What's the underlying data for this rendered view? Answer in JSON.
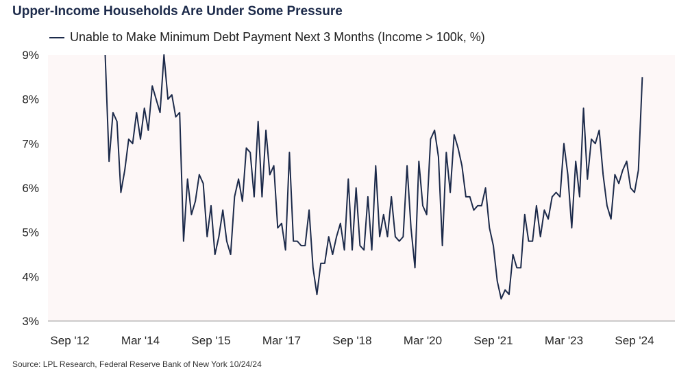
{
  "title": "Upper-Income Households Are Under Some Pressure",
  "source": "Source: LPL Research, Federal Reserve Bank of New York 10/24/24",
  "chart_data": {
    "type": "line",
    "title": "Upper-Income Households Are Under Some Pressure",
    "xlabel": "",
    "ylabel": "",
    "ylim": [
      3,
      9
    ],
    "yticks": [
      "3%",
      "4%",
      "5%",
      "6%",
      "7%",
      "8%",
      "9%"
    ],
    "xticks": [
      "Sep '12",
      "Mar '14",
      "Sep '15",
      "Mar '17",
      "Sep '18",
      "Mar '20",
      "Sep '21",
      "Mar '23",
      "Sep '24"
    ],
    "legend_position": "top-left",
    "grid": false,
    "line_color": "#1c2a4a",
    "plot_background": "#fdf7f7",
    "start": "2013-06",
    "frequency": "monthly",
    "series": [
      {
        "name": "Unable to Make Minimum Debt Payment Next 3 Months (Income > 100k, %)",
        "values": [
          9.0,
          6.6,
          7.7,
          7.5,
          5.9,
          6.4,
          7.1,
          7.0,
          7.7,
          7.1,
          7.8,
          7.3,
          8.3,
          8.0,
          7.7,
          9.0,
          8.0,
          8.1,
          7.6,
          7.7,
          4.8,
          6.2,
          5.4,
          5.7,
          6.3,
          6.1,
          4.9,
          5.6,
          4.5,
          4.9,
          5.5,
          4.8,
          4.5,
          5.8,
          6.2,
          5.7,
          6.9,
          6.8,
          5.8,
          7.5,
          5.8,
          7.3,
          6.3,
          6.5,
          5.1,
          5.2,
          4.6,
          6.8,
          4.8,
          4.8,
          4.7,
          4.7,
          5.5,
          4.2,
          3.6,
          4.3,
          4.3,
          4.9,
          4.5,
          4.9,
          5.2,
          4.6,
          6.2,
          4.6,
          6.0,
          4.7,
          4.6,
          5.8,
          4.6,
          6.5,
          4.9,
          5.4,
          4.9,
          5.8,
          4.9,
          4.8,
          4.9,
          6.5,
          5.1,
          4.2,
          6.6,
          5.6,
          5.4,
          7.1,
          7.3,
          6.7,
          4.7,
          6.8,
          5.9,
          7.2,
          6.9,
          6.5,
          5.8,
          5.8,
          5.5,
          5.6,
          5.6,
          6.0,
          5.1,
          4.7,
          3.9,
          3.5,
          3.7,
          3.6,
          4.5,
          4.2,
          4.2,
          5.4,
          4.8,
          4.8,
          5.6,
          4.9,
          5.5,
          5.3,
          5.8,
          5.9,
          5.8,
          7.0,
          6.3,
          5.1,
          6.6,
          5.8,
          7.8,
          6.2,
          7.1,
          7.0,
          7.3,
          6.3,
          5.6,
          5.3,
          6.3,
          6.1,
          6.4,
          6.6,
          6.0,
          5.9,
          6.4,
          8.5
        ]
      }
    ]
  }
}
